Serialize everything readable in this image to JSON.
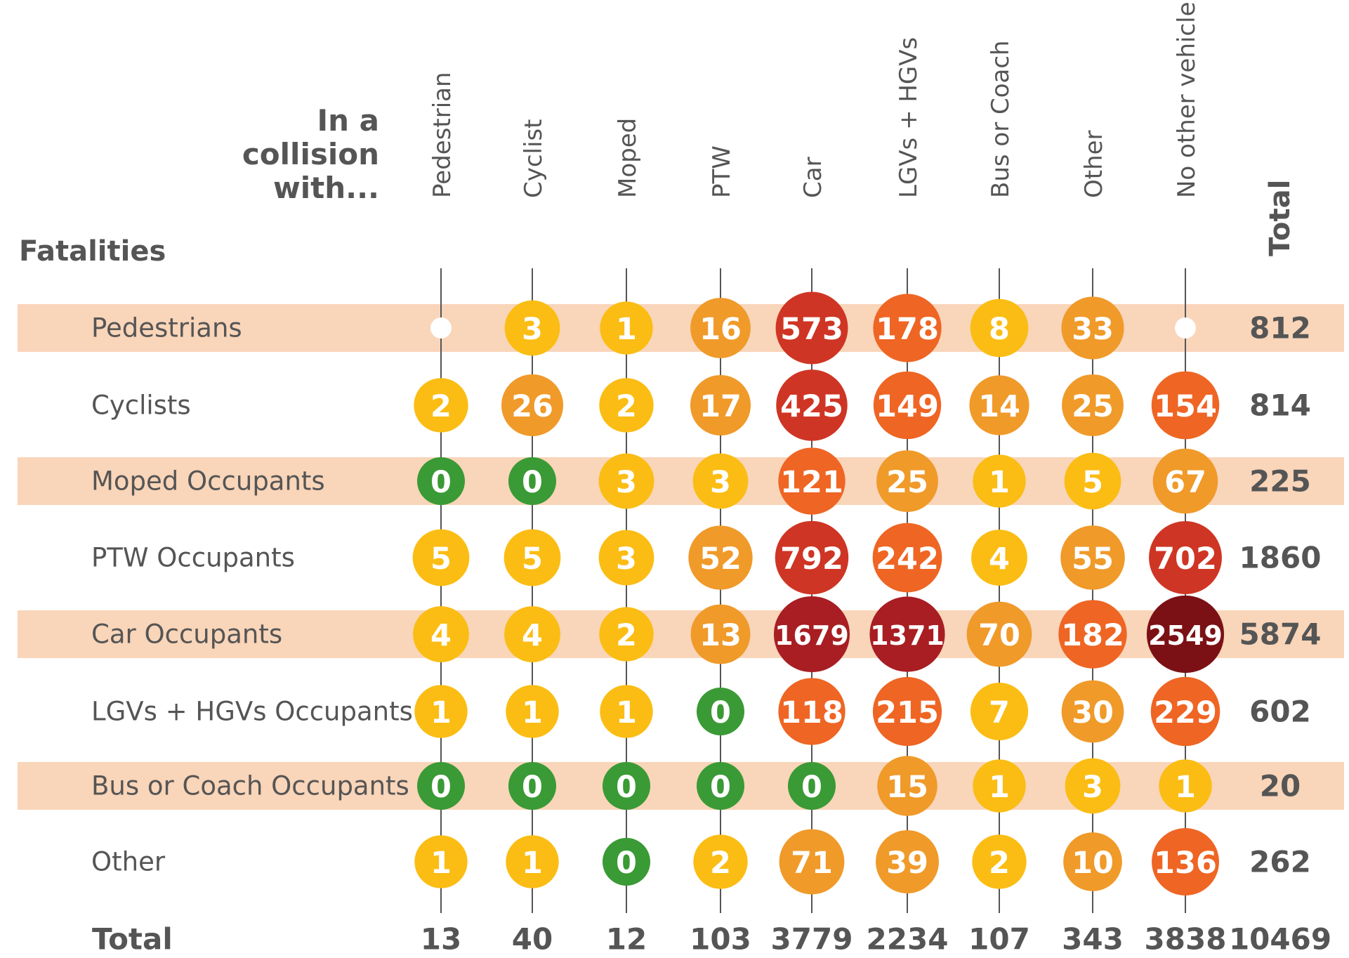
{
  "chart_data": {
    "type": "bubble-matrix",
    "corner_label": "In a collision with...",
    "row_header": "Fatalities",
    "total_label": "Total",
    "columns": [
      "Pedestrian",
      "Cyclist",
      "Moped",
      "PTW",
      "Car",
      "LGVs + HGVs",
      "Bus or Coach",
      "Other",
      "No other vehicle"
    ],
    "rows": [
      "Pedestrians",
      "Cyclists",
      "Moped Occupants",
      "PTW Occupants",
      "Car Occupants",
      "LGVs + HGVs Occupants",
      "Bus or Coach Occupants",
      "Other"
    ],
    "values": [
      [
        null,
        3,
        1,
        16,
        573,
        178,
        8,
        33,
        null
      ],
      [
        2,
        26,
        2,
        17,
        425,
        149,
        14,
        25,
        154
      ],
      [
        0,
        0,
        3,
        3,
        121,
        25,
        1,
        5,
        67
      ],
      [
        5,
        5,
        3,
        52,
        792,
        242,
        4,
        55,
        702
      ],
      [
        4,
        4,
        2,
        13,
        1679,
        1371,
        70,
        182,
        2549
      ],
      [
        1,
        1,
        1,
        0,
        118,
        215,
        7,
        30,
        229
      ],
      [
        0,
        0,
        0,
        0,
        0,
        15,
        1,
        3,
        1
      ],
      [
        1,
        1,
        0,
        2,
        71,
        39,
        2,
        10,
        136
      ]
    ],
    "row_totals": [
      812,
      814,
      225,
      1860,
      5874,
      602,
      20,
      262
    ],
    "column_totals": [
      13,
      40,
      12,
      103,
      3779,
      2234,
      107,
      343,
      3838
    ],
    "grand_total": 10469,
    "colors": [
      "#3a9a35",
      "#fbbd14",
      "#f09a2a",
      "#ef6524",
      "#cf3524",
      "#a81e23",
      "#7b1115"
    ],
    "band_color": "#f9d5b9"
  }
}
